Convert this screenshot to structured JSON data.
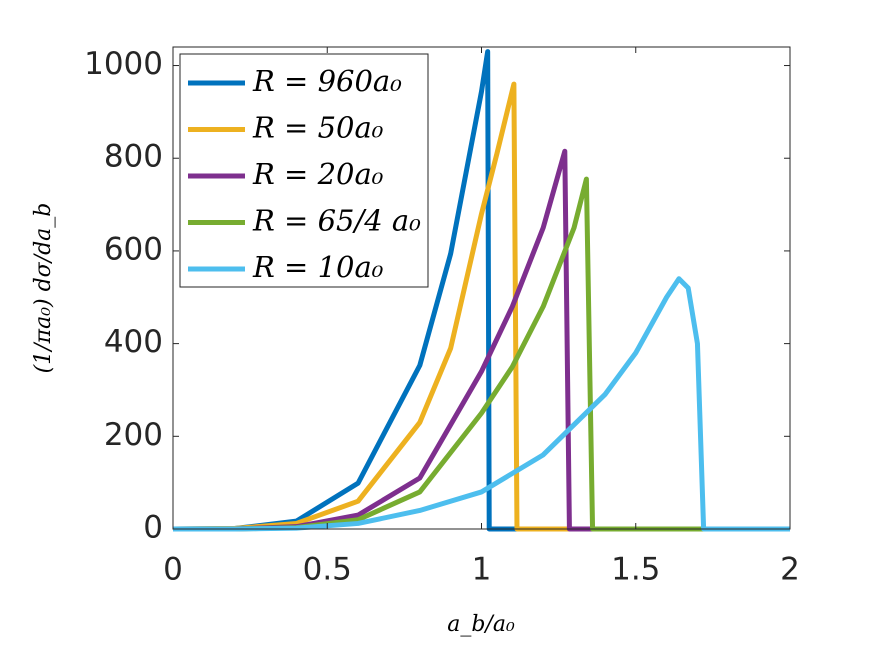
{
  "chart_data": {
    "type": "line",
    "xlabel": "a_b/a₀",
    "ylabel": "(1/πa₀) dσ/da_b",
    "xlim": [
      0,
      2
    ],
    "ylim": [
      0,
      1040
    ],
    "xticks": [
      0,
      0.5,
      1,
      1.5,
      2
    ],
    "yticks": [
      0,
      200,
      400,
      600,
      800,
      1000
    ],
    "legend": "upper left",
    "series": [
      {
        "name": "R = 960a₀",
        "color": "#0072BD",
        "x": [
          0,
          0.2,
          0.4,
          0.6,
          0.8,
          0.9,
          1.0,
          1.02,
          1.025,
          2
        ],
        "values": [
          0,
          1,
          17,
          99,
          353,
          594,
          944,
          1030,
          0,
          0
        ]
      },
      {
        "name": "R = 50a₀",
        "color": "#EDB120",
        "x": [
          0,
          0.2,
          0.4,
          0.6,
          0.8,
          0.9,
          1.0,
          1.05,
          1.105,
          1.115,
          2
        ],
        "values": [
          0,
          1,
          12,
          60,
          230,
          390,
          680,
          810,
          960,
          0,
          0
        ]
      },
      {
        "name": "R = 20a₀",
        "color": "#7E2F8E",
        "x": [
          0,
          0.2,
          0.4,
          0.6,
          0.8,
          1.0,
          1.1,
          1.2,
          1.27,
          1.285,
          2
        ],
        "values": [
          0,
          0,
          5,
          30,
          110,
          340,
          480,
          650,
          815,
          0,
          0
        ]
      },
      {
        "name": "R = 65/4 a₀",
        "color": "#77AC30",
        "x": [
          0,
          0.2,
          0.4,
          0.6,
          0.8,
          1.0,
          1.1,
          1.2,
          1.3,
          1.34,
          1.36,
          2
        ],
        "values": [
          0,
          0,
          3,
          20,
          80,
          250,
          350,
          480,
          650,
          755,
          0,
          0
        ]
      },
      {
        "name": "R = 10a₀",
        "color": "#4DBEEE",
        "x": [
          0,
          0.2,
          0.4,
          0.6,
          0.8,
          1.0,
          1.2,
          1.4,
          1.5,
          1.6,
          1.64,
          1.67,
          1.7,
          1.72,
          2
        ],
        "values": [
          0,
          0,
          2,
          12,
          40,
          80,
          160,
          290,
          380,
          500,
          540,
          520,
          400,
          0,
          0
        ]
      }
    ]
  }
}
